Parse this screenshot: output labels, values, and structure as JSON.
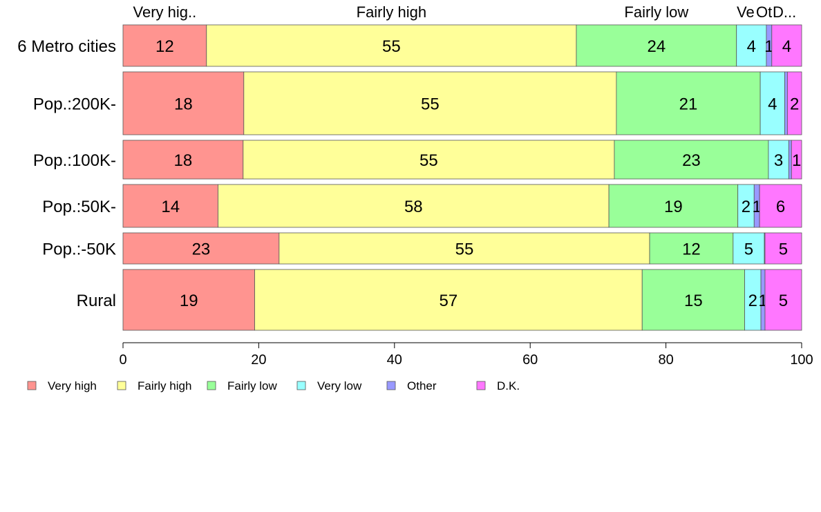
{
  "chart_data": {
    "type": "bar",
    "orientation": "horizontal",
    "stacked": true,
    "categories": [
      "6 Metro cities",
      "Pop.:200K-",
      "Pop.:100K-",
      "Pop.:50K-",
      "Pop.:-50K",
      "Rural"
    ],
    "series": [
      {
        "name": "Very high",
        "color": "#FF9490",
        "values": [
          12.3,
          17.8,
          17.7,
          14.0,
          23.0,
          19.4
        ],
        "labels": [
          "12",
          "18",
          "18",
          "14",
          "23",
          "19"
        ]
      },
      {
        "name": "Fairly high",
        "color": "#FFFF99",
        "values": [
          54.5,
          54.9,
          54.7,
          57.6,
          54.6,
          57.1
        ],
        "labels": [
          "55",
          "55",
          "55",
          "58",
          "55",
          "57"
        ]
      },
      {
        "name": "Fairly low",
        "color": "#99FF99",
        "values": [
          23.6,
          21.2,
          22.7,
          19.0,
          12.3,
          15.1
        ],
        "labels": [
          "24",
          "21",
          "23",
          "19",
          "12",
          "15"
        ]
      },
      {
        "name": "Very low",
        "color": "#99FFFF",
        "values": [
          4.4,
          3.6,
          3.0,
          2.4,
          4.6,
          2.4
        ],
        "labels": [
          "4",
          "4",
          "3",
          "2",
          "5",
          "2"
        ]
      },
      {
        "name": "Other",
        "color": "#9999FF",
        "values": [
          0.8,
          0.4,
          0.4,
          0.8,
          0.1,
          0.6
        ],
        "labels": [
          "1",
          "",
          "",
          "1",
          "",
          "1"
        ]
      },
      {
        "name": "D.K.",
        "color": "#FF77FF",
        "values": [
          4.4,
          2.1,
          1.5,
          6.2,
          5.4,
          5.4
        ],
        "labels": [
          "4",
          "2",
          "1",
          "6",
          "5",
          "5"
        ]
      }
    ],
    "top_labels": [
      "Very hig..",
      "Fairly high",
      "Fairly low",
      "Ve",
      "Ot",
      "D..."
    ],
    "bar_heights": [
      60,
      91,
      56,
      62,
      45,
      88
    ],
    "x_ticks": [
      "0",
      "20",
      "40",
      "60",
      "80",
      "100"
    ],
    "xlim": [
      0,
      100
    ],
    "legend": {
      "entries": [
        "Very high",
        "Fairly high",
        "Fairly low",
        "Very low",
        "Other",
        "D.K."
      ],
      "position": "bottom-left"
    },
    "grid": false
  }
}
